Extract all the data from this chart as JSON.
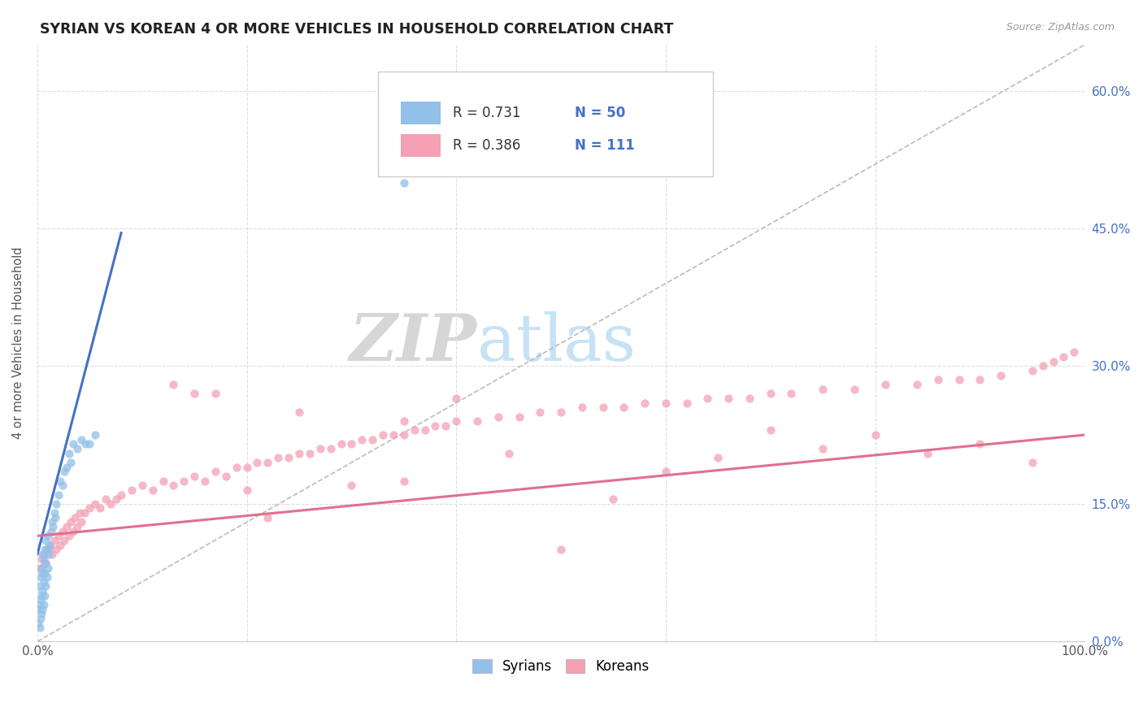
{
  "title": "SYRIAN VS KOREAN 4 OR MORE VEHICLES IN HOUSEHOLD CORRELATION CHART",
  "source_text": "Source: ZipAtlas.com",
  "ylabel": "4 or more Vehicles in Household",
  "xlim": [
    0,
    1.0
  ],
  "ylim": [
    0,
    0.65
  ],
  "ytick_values": [
    0.0,
    0.15,
    0.3,
    0.45,
    0.6
  ],
  "watermark_zip": "ZIP",
  "watermark_atlas": "atlas",
  "syrian_color": "#92C0E8",
  "korean_color": "#F4A0B5",
  "syrian_line_color": "#4472C4",
  "korean_line_color": "#E07090",
  "diag_color": "#BBBBBB",
  "syrian_R": 0.731,
  "syrian_N": 50,
  "korean_R": 0.386,
  "korean_N": 111,
  "legend_label_syrian": "Syrians",
  "legend_label_korean": "Koreans",
  "syrian_scatter_x": [
    0.001,
    0.001,
    0.002,
    0.002,
    0.002,
    0.003,
    0.003,
    0.003,
    0.004,
    0.004,
    0.004,
    0.005,
    0.005,
    0.005,
    0.005,
    0.006,
    0.006,
    0.006,
    0.007,
    0.007,
    0.007,
    0.008,
    0.008,
    0.008,
    0.009,
    0.009,
    0.01,
    0.01,
    0.011,
    0.012,
    0.013,
    0.014,
    0.015,
    0.016,
    0.017,
    0.018,
    0.02,
    0.022,
    0.024,
    0.026,
    0.028,
    0.03,
    0.032,
    0.034,
    0.038,
    0.042,
    0.046,
    0.05,
    0.055,
    0.35
  ],
  "syrian_scatter_y": [
    0.02,
    0.035,
    0.015,
    0.04,
    0.06,
    0.025,
    0.045,
    0.07,
    0.03,
    0.05,
    0.08,
    0.035,
    0.055,
    0.075,
    0.095,
    0.04,
    0.065,
    0.09,
    0.05,
    0.075,
    0.1,
    0.06,
    0.085,
    0.11,
    0.07,
    0.1,
    0.08,
    0.115,
    0.095,
    0.105,
    0.12,
    0.13,
    0.125,
    0.14,
    0.135,
    0.15,
    0.16,
    0.175,
    0.17,
    0.185,
    0.19,
    0.205,
    0.195,
    0.215,
    0.21,
    0.22,
    0.215,
    0.215,
    0.225,
    0.5
  ],
  "korean_scatter_x": [
    0.002,
    0.004,
    0.006,
    0.008,
    0.01,
    0.012,
    0.014,
    0.016,
    0.018,
    0.02,
    0.022,
    0.024,
    0.026,
    0.028,
    0.03,
    0.032,
    0.034,
    0.036,
    0.038,
    0.04,
    0.042,
    0.045,
    0.05,
    0.055,
    0.06,
    0.065,
    0.07,
    0.075,
    0.08,
    0.09,
    0.1,
    0.11,
    0.12,
    0.13,
    0.14,
    0.15,
    0.16,
    0.17,
    0.18,
    0.19,
    0.2,
    0.21,
    0.22,
    0.23,
    0.24,
    0.25,
    0.26,
    0.27,
    0.28,
    0.29,
    0.3,
    0.31,
    0.32,
    0.33,
    0.34,
    0.35,
    0.36,
    0.37,
    0.38,
    0.39,
    0.4,
    0.42,
    0.44,
    0.46,
    0.48,
    0.5,
    0.52,
    0.54,
    0.56,
    0.58,
    0.6,
    0.62,
    0.64,
    0.66,
    0.68,
    0.7,
    0.72,
    0.75,
    0.78,
    0.81,
    0.84,
    0.86,
    0.88,
    0.9,
    0.92,
    0.95,
    0.96,
    0.97,
    0.98,
    0.99,
    0.17,
    0.2,
    0.25,
    0.13,
    0.3,
    0.35,
    0.4,
    0.45,
    0.5,
    0.55,
    0.6,
    0.65,
    0.7,
    0.75,
    0.8,
    0.85,
    0.9,
    0.95,
    0.35,
    0.15,
    0.22
  ],
  "korean_scatter_y": [
    0.08,
    0.09,
    0.095,
    0.085,
    0.1,
    0.105,
    0.095,
    0.11,
    0.1,
    0.115,
    0.105,
    0.12,
    0.11,
    0.125,
    0.115,
    0.13,
    0.12,
    0.135,
    0.125,
    0.14,
    0.13,
    0.14,
    0.145,
    0.15,
    0.145,
    0.155,
    0.15,
    0.155,
    0.16,
    0.165,
    0.17,
    0.165,
    0.175,
    0.17,
    0.175,
    0.18,
    0.175,
    0.185,
    0.18,
    0.19,
    0.19,
    0.195,
    0.195,
    0.2,
    0.2,
    0.205,
    0.205,
    0.21,
    0.21,
    0.215,
    0.215,
    0.22,
    0.22,
    0.225,
    0.225,
    0.225,
    0.23,
    0.23,
    0.235,
    0.235,
    0.24,
    0.24,
    0.245,
    0.245,
    0.25,
    0.25,
    0.255,
    0.255,
    0.255,
    0.26,
    0.26,
    0.26,
    0.265,
    0.265,
    0.265,
    0.27,
    0.27,
    0.275,
    0.275,
    0.28,
    0.28,
    0.285,
    0.285,
    0.285,
    0.29,
    0.295,
    0.3,
    0.305,
    0.31,
    0.315,
    0.27,
    0.165,
    0.25,
    0.28,
    0.17,
    0.24,
    0.265,
    0.205,
    0.1,
    0.155,
    0.185,
    0.2,
    0.23,
    0.21,
    0.225,
    0.205,
    0.215,
    0.195,
    0.175,
    0.27,
    0.135
  ],
  "syrian_line_x": [
    0.0,
    0.08
  ],
  "syrian_line_y": [
    0.095,
    0.445
  ],
  "korean_line_x": [
    0.0,
    1.0
  ],
  "korean_line_y": [
    0.115,
    0.225
  ]
}
